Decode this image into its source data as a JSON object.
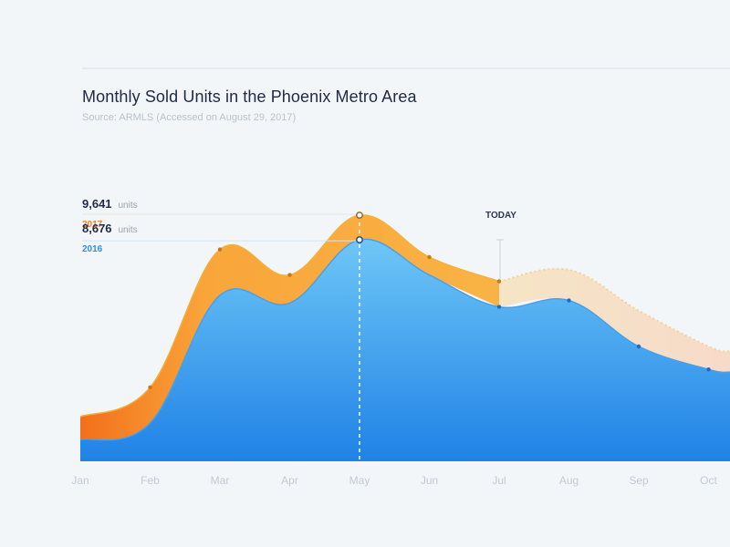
{
  "chart_data": {
    "type": "area",
    "title": "Monthly Sold Units in the Phoenix Metro Area",
    "subtitle": "Source: ARMLS (Accessed on August 29, 2017)",
    "categories": [
      "Jan",
      "Feb",
      "Mar",
      "Apr",
      "May",
      "Jun",
      "Jul",
      "Aug",
      "Sep",
      "Oct"
    ],
    "ylim": [
      0,
      12000
    ],
    "series": [
      {
        "name": "2017",
        "values": [
          1750,
          2900,
          8300,
          7300,
          9641,
          8000,
          7050,
          null,
          null,
          null
        ],
        "projected": [
          null,
          null,
          null,
          null,
          null,
          null,
          7050,
          7500,
          5900,
          4500
        ],
        "color": "#f7a31c"
      },
      {
        "name": "2016",
        "values": [
          850,
          1500,
          6500,
          6200,
          8676,
          7300,
          6050,
          6300,
          4500,
          3600
        ],
        "color": "#2f8de4"
      }
    ],
    "highlight": {
      "category": "May",
      "labels": [
        {
          "value": "9,641",
          "unit": "units",
          "series": "2017"
        },
        {
          "value": "8,676",
          "unit": "units",
          "series": "2016"
        }
      ]
    },
    "today_marker": {
      "category": "Jul",
      "label": "TODAY"
    },
    "grid": false
  },
  "colors": {
    "y2017": "#f5a623",
    "y2016": "#2f8de4",
    "label2017": "#f0822a",
    "label2016": "#2f8de4"
  }
}
